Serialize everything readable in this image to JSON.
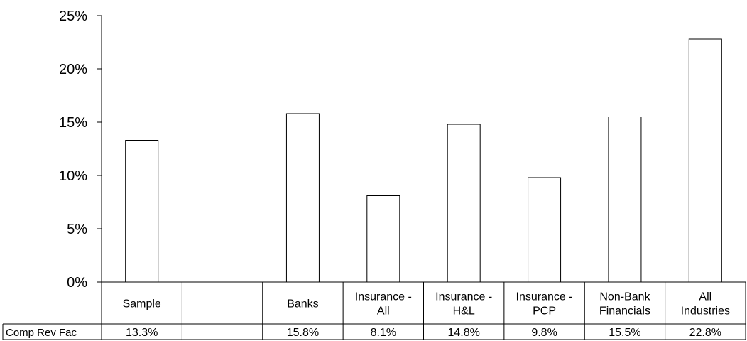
{
  "chart_data": {
    "type": "bar",
    "categories": [
      "Sample",
      "",
      "Banks",
      "Insurance -\nAll",
      "Insurance -\nH&L",
      "Insurance -\nPCP",
      "Non-Bank\nFinancials",
      "All\nIndustries"
    ],
    "series": [
      {
        "name": "Comp Rev Fac",
        "values": [
          13.3,
          null,
          15.8,
          8.1,
          14.8,
          9.8,
          15.5,
          22.8
        ]
      }
    ],
    "value_labels": [
      "13.3%",
      "",
      "15.8%",
      "8.1%",
      "14.8%",
      "9.8%",
      "15.5%",
      "22.8%"
    ],
    "yticks": [
      "0%",
      "5%",
      "10%",
      "15%",
      "20%",
      "25%"
    ],
    "ylim": [
      0,
      25
    ],
    "grid": false,
    "data_table": true,
    "bar_fill": "#ffffff",
    "bar_stroke": "#000000"
  }
}
